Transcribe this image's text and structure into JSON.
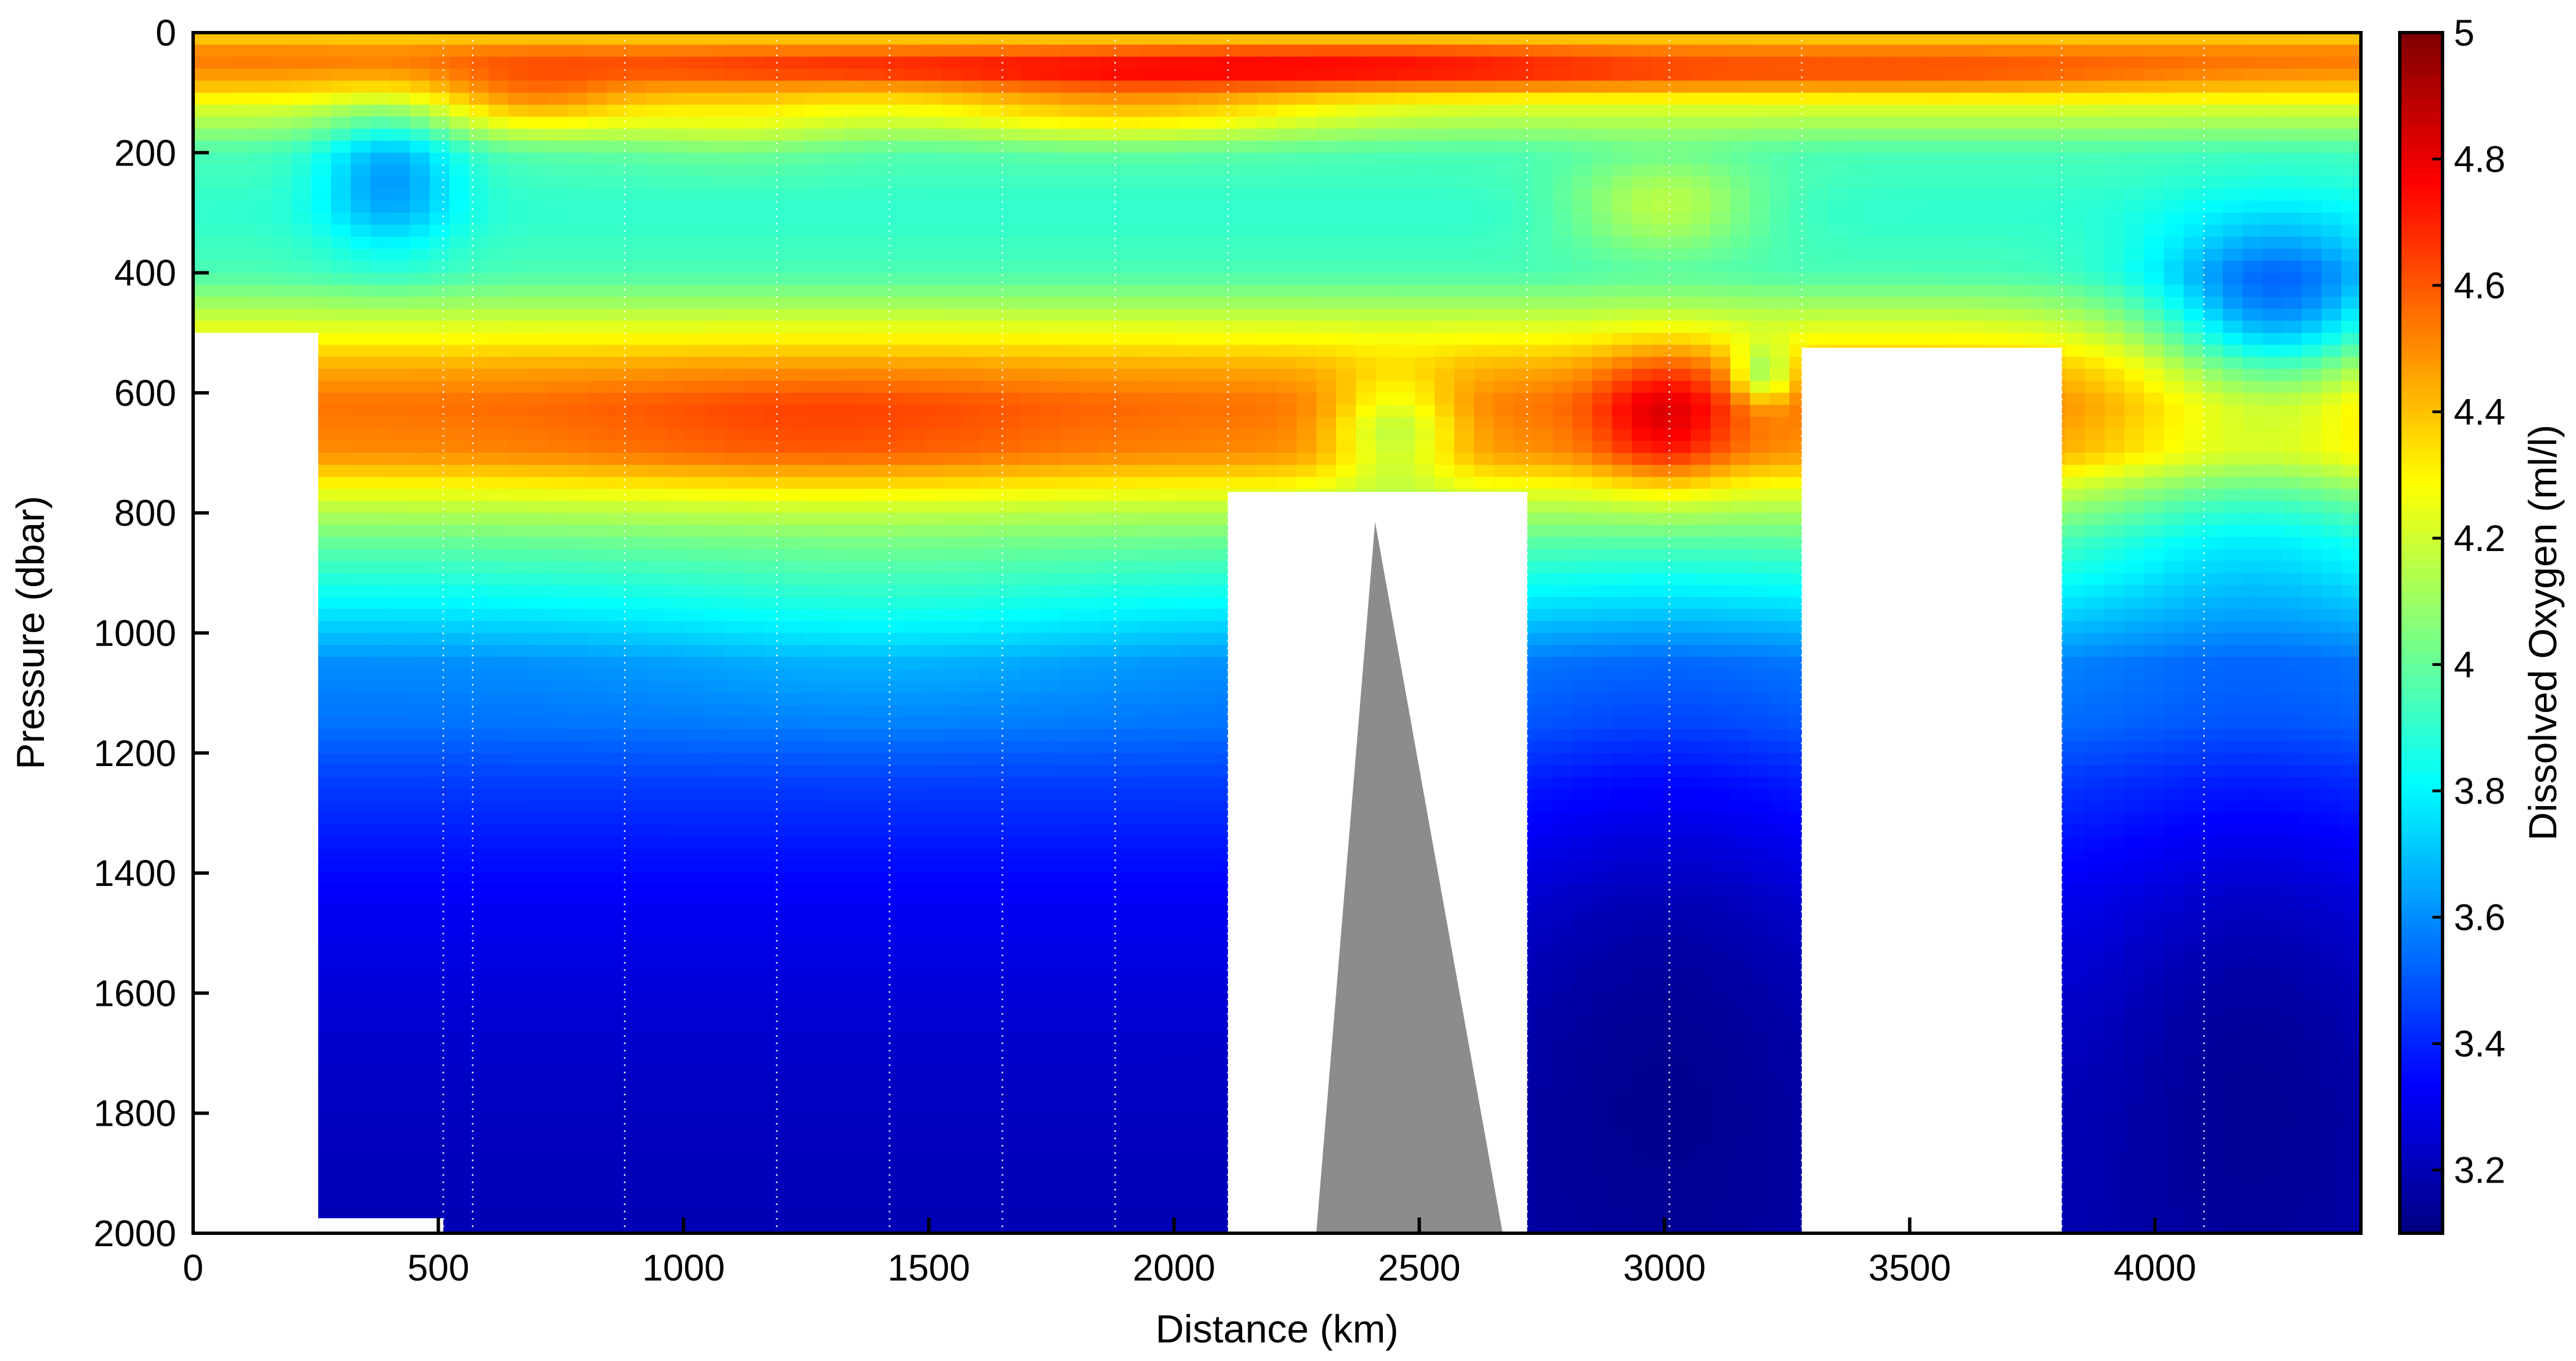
{
  "chart_data": {
    "type": "heatmap",
    "title": "",
    "xlabel": "Distance (km)",
    "ylabel": "Pressure (dbar)",
    "colorbar_label": "Dissolved Oxygen (ml/l)",
    "xlim": [
      0,
      4420
    ],
    "ylim": [
      0,
      2000
    ],
    "y_reversed": true,
    "clim": [
      3.1,
      5.0
    ],
    "colormap": "jet",
    "x_ticks": [
      0,
      500,
      1000,
      1500,
      2000,
      2500,
      3000,
      3500,
      4000
    ],
    "y_ticks": [
      0,
      200,
      400,
      600,
      800,
      1000,
      1200,
      1400,
      1600,
      1800,
      2000
    ],
    "colorbar_ticks": [
      3.2,
      3.4,
      3.6,
      3.8,
      4,
      4.2,
      4.4,
      4.6,
      4.8,
      5
    ],
    "station_x": [
      510,
      570,
      880,
      1190,
      1420,
      1650,
      1880,
      2110,
      2720,
      3010,
      3280,
      3810,
      4100
    ],
    "masked_regions": [
      {
        "x": [
          0,
          255
        ],
        "pressure": [
          500,
          2000
        ]
      },
      {
        "x": [
          255,
          510
        ],
        "pressure": [
          1975,
          2000
        ]
      },
      {
        "x": [
          2110,
          2720
        ],
        "pressure": [
          765,
          2000
        ]
      },
      {
        "x": [
          3280,
          3810
        ],
        "pressure": [
          525,
          2000
        ]
      }
    ],
    "bathymetry": {
      "x": [
        2290,
        2410,
        2670
      ],
      "pressure": [
        2000,
        815,
        2000
      ],
      "color": "#8c8c8c"
    },
    "fields": {
      "base_profile": {
        "pressure": [
          0,
          10,
          40,
          80,
          130,
          200,
          300,
          400,
          480,
          560,
          620,
          700,
          780,
          850,
          950,
          1050,
          1150,
          1250,
          1350,
          1450,
          1550,
          1650,
          1800,
          2000
        ],
        "oxygen": [
          4.35,
          4.4,
          4.55,
          4.45,
          4.2,
          3.95,
          3.9,
          3.95,
          4.2,
          4.45,
          4.55,
          4.5,
          4.2,
          4.0,
          3.8,
          3.6,
          3.55,
          3.45,
          3.38,
          3.32,
          3.28,
          3.25,
          3.22,
          3.2
        ]
      },
      "anomalies": [
        {
          "x": 1500,
          "pressure": 60,
          "sx": 700,
          "sp": 25,
          "amp": 0.15
        },
        {
          "x": 2500,
          "pressure": 70,
          "sx": 700,
          "sp": 25,
          "amp": 0.2
        },
        {
          "x": 3600,
          "pressure": 70,
          "sx": 500,
          "sp": 30,
          "amp": 0.1
        },
        {
          "x": 2400,
          "pressure": 40,
          "sx": 500,
          "sp": 20,
          "amp": 0.1
        },
        {
          "x": 400,
          "pressure": 240,
          "sx": 140,
          "sp": 120,
          "amp": -0.3
        },
        {
          "x": 700,
          "pressure": 120,
          "sx": 200,
          "sp": 60,
          "amp": 0.2
        },
        {
          "x": 1100,
          "pressure": 150,
          "sx": 250,
          "sp": 70,
          "amp": 0.12
        },
        {
          "x": 1900,
          "pressure": 130,
          "sx": 400,
          "sp": 60,
          "amp": 0.2
        },
        {
          "x": 3000,
          "pressure": 290,
          "sx": 200,
          "sp": 80,
          "amp": 0.25
        },
        {
          "x": 4250,
          "pressure": 470,
          "sx": 250,
          "sp": 150,
          "amp": -0.5
        },
        {
          "x": 4200,
          "pressure": 750,
          "sx": 350,
          "sp": 230,
          "amp": -0.25
        },
        {
          "x": 3000,
          "pressure": 640,
          "sx": 140,
          "sp": 110,
          "amp": 0.3
        },
        {
          "x": 3200,
          "pressure": 570,
          "sx": 60,
          "sp": 50,
          "amp": -0.35
        },
        {
          "x": 1300,
          "pressure": 660,
          "sx": 500,
          "sp": 110,
          "amp": 0.1
        },
        {
          "x": 2450,
          "pressure": 660,
          "sx": 130,
          "sp": 90,
          "amp": -0.35
        },
        {
          "x": 3000,
          "pressure": 1500,
          "sx": 400,
          "sp": 600,
          "amp": -0.12
        },
        {
          "x": 4200,
          "pressure": 1600,
          "sx": 300,
          "sp": 500,
          "amp": -0.1
        },
        {
          "x": 1400,
          "pressure": 1000,
          "sx": 500,
          "sp": 150,
          "amp": 0.08
        }
      ]
    }
  }
}
